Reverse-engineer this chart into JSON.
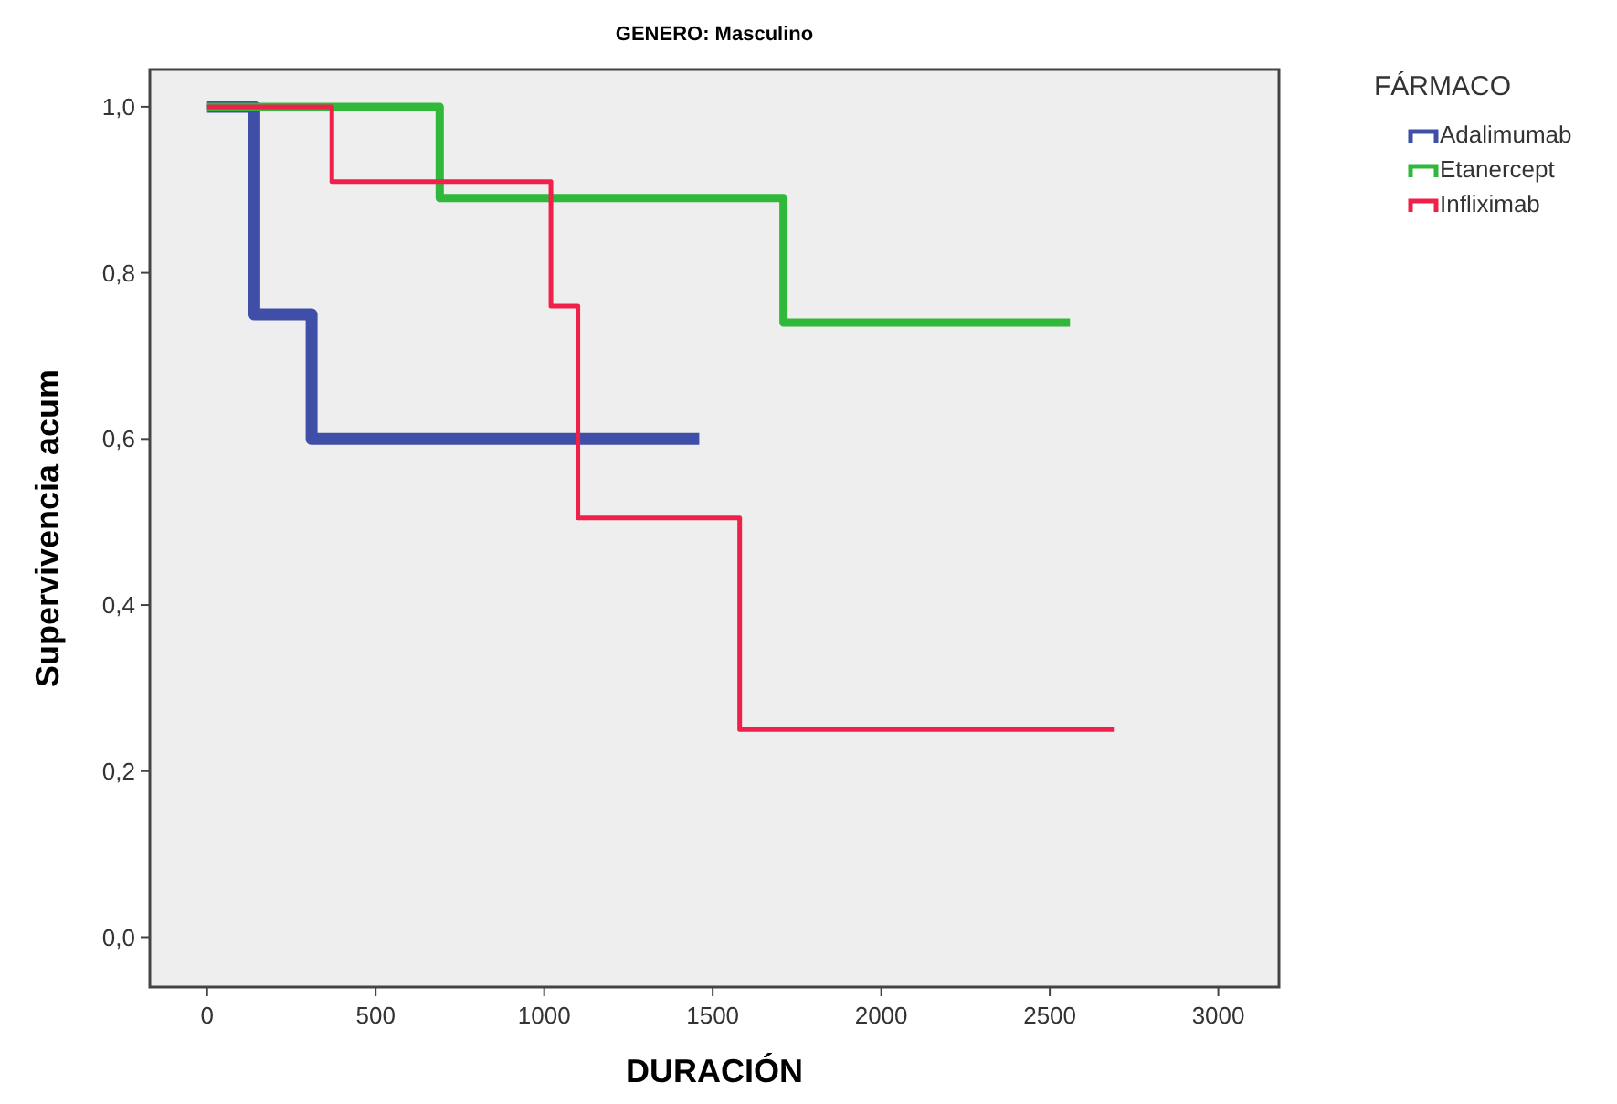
{
  "chart_data": {
    "type": "step",
    "title": "GENERO: Masculino",
    "xlabel": "DURACIÓN",
    "ylabel": "Supervivencia acum",
    "legend_title": "FÁRMACO",
    "legend": "top right",
    "grid": false,
    "xlim": [
      -170,
      3180
    ],
    "xticks": [
      0,
      500,
      1000,
      1500,
      2000,
      2500,
      3000
    ],
    "ylim": [
      -0.06,
      1.045
    ],
    "yticks": [
      {
        "value": 0,
        "label": "0,0"
      },
      {
        "value": 0.2,
        "label": "0,2"
      },
      {
        "value": 0.4,
        "label": "0,4"
      },
      {
        "value": 0.6,
        "label": "0,6"
      },
      {
        "value": 0.8,
        "label": "0,8"
      },
      {
        "value": 1,
        "label": "1,0"
      }
    ],
    "series": [
      {
        "name": "Adalimumab",
        "color": "#3f4fa8",
        "x": [
          0,
          140,
          310,
          1460
        ],
        "values": [
          1,
          0.75,
          0.6,
          0.6
        ]
      },
      {
        "name": "Etanercept",
        "color": "#2fb83a",
        "x": [
          0,
          690,
          1710,
          2560
        ],
        "values": [
          1,
          0.89,
          0.74,
          0.74
        ]
      },
      {
        "name": "Infliximab",
        "color": "#f0204a",
        "x": [
          0,
          370,
          1020,
          1100,
          1580,
          2690
        ],
        "values": [
          1,
          0.91,
          0.76,
          0.505,
          0.25,
          0.25
        ]
      }
    ]
  }
}
